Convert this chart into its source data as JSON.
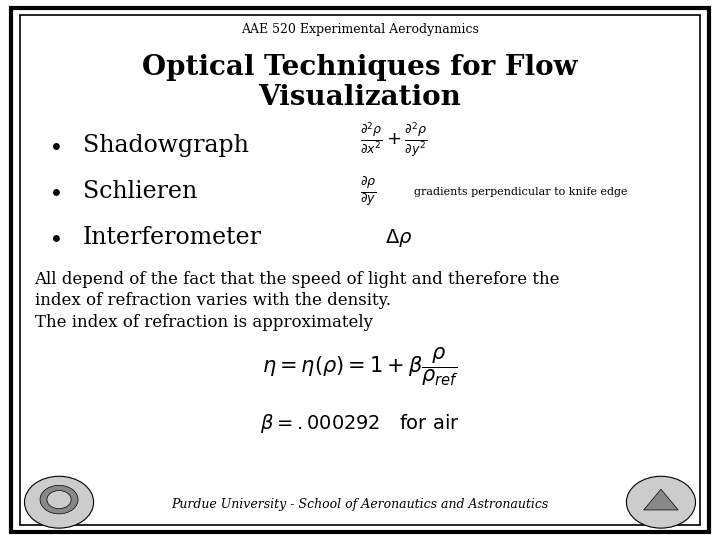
{
  "bg_color": "#ffffff",
  "border_color": "#000000",
  "header_text": "AAE 520 Experimental Aerodynamics",
  "title_line1": "Optical Techniques for Flow",
  "title_line2": "Visualization",
  "bullet1": "Shadowgraph",
  "bullet2": "Schlieren",
  "bullet3": "Interferometer",
  "schlieren_note": "gradients perpendicular to knife edge",
  "body_text1": "All depend of the fact that the speed of light and therefore the",
  "body_text2": "index of refraction varies with the density.",
  "body_text3": "The index of refraction is approximately",
  "footer_text": "Purdue University - School of Aeronautics and Astronautics",
  "title_fontsize": 20,
  "header_fontsize": 9,
  "bullet_fontsize": 17,
  "body_fontsize": 12,
  "eq_fontsize": 11,
  "footer_fontsize": 9
}
